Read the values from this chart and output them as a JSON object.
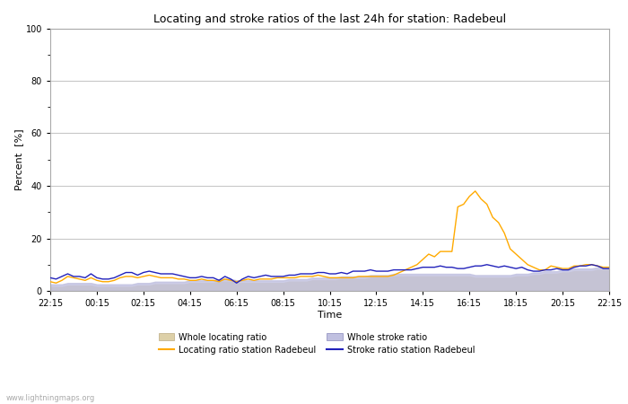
{
  "title": "Locating and stroke ratios of the last 24h for station: Radebeul",
  "xlabel": "Time",
  "ylabel": "Percent  [%]",
  "watermark": "www.lightningmaps.org",
  "x_ticks": [
    "22:15",
    "00:15",
    "02:15",
    "04:15",
    "06:15",
    "08:15",
    "10:15",
    "12:15",
    "14:15",
    "16:15",
    "18:15",
    "20:15",
    "22:15"
  ],
  "ylim": [
    0,
    100
  ],
  "yticks": [
    0,
    20,
    40,
    60,
    80,
    100
  ],
  "y_minor_ticks": [
    10,
    30,
    50,
    70,
    90
  ],
  "bg_color": "#ffffff",
  "plot_bg_color": "#ffffff",
  "grid_color": "#c8c8c8",
  "locating_line_color": "#ffaa00",
  "stroke_line_color": "#2222bb",
  "locating_fill_color": "#ddd0a8",
  "stroke_fill_color": "#c0c0e0",
  "legend_labels": [
    "Whole locating ratio",
    "Locating ratio station Radebeul",
    "Whole stroke ratio",
    "Stroke ratio station Radebeul"
  ],
  "n_points": 97,
  "whole_locating_ratio": [
    1.5,
    1.5,
    1.5,
    2.0,
    2.0,
    2.0,
    2.0,
    2.0,
    1.5,
    1.5,
    1.5,
    1.5,
    1.5,
    1.5,
    1.5,
    2.0,
    2.0,
    2.0,
    2.5,
    2.5,
    2.5,
    2.5,
    2.5,
    2.5,
    3.0,
    3.0,
    3.0,
    3.0,
    3.0,
    3.5,
    3.5,
    3.5,
    3.0,
    3.0,
    3.0,
    3.0,
    3.0,
    3.0,
    3.0,
    3.0,
    3.0,
    3.5,
    3.5,
    3.5,
    3.5,
    4.0,
    4.0,
    4.0,
    4.0,
    4.0,
    4.5,
    4.5,
    4.5,
    4.5,
    4.5,
    5.0,
    5.0,
    5.0,
    5.0,
    5.5,
    5.5,
    5.5,
    5.5,
    5.5,
    5.5,
    5.5,
    5.5,
    5.5,
    5.5,
    5.5,
    5.5,
    5.5,
    5.5,
    5.0,
    5.0,
    5.0,
    5.0,
    5.0,
    5.0,
    5.0,
    5.5,
    5.5,
    5.5,
    6.0,
    6.0,
    6.5,
    6.5,
    6.5,
    7.0,
    7.0,
    7.5,
    7.5,
    7.5,
    7.5,
    8.0,
    8.0,
    8.0
  ],
  "locating_station": [
    3.5,
    3.0,
    4.0,
    5.5,
    5.0,
    4.5,
    4.0,
    5.0,
    4.0,
    3.5,
    3.5,
    4.0,
    5.0,
    5.5,
    5.5,
    5.0,
    5.5,
    6.0,
    5.5,
    5.0,
    5.0,
    5.0,
    4.5,
    4.5,
    4.0,
    4.0,
    4.5,
    4.0,
    4.0,
    3.5,
    4.5,
    4.0,
    3.5,
    4.0,
    4.5,
    4.0,
    4.5,
    4.5,
    4.5,
    5.0,
    5.0,
    5.0,
    5.0,
    5.5,
    5.5,
    5.5,
    6.0,
    5.5,
    5.0,
    5.0,
    5.0,
    5.0,
    5.0,
    5.5,
    5.5,
    5.5,
    5.5,
    5.5,
    5.5,
    6.0,
    7.0,
    8.0,
    9.0,
    10.0,
    12.0,
    14.0,
    13.0,
    15.0,
    15.0,
    15.0,
    32.0,
    33.0,
    36.0,
    38.0,
    35.0,
    33.0,
    28.0,
    26.0,
    22.0,
    16.0,
    14.0,
    12.0,
    10.0,
    9.0,
    8.0,
    8.0,
    9.5,
    9.0,
    8.5,
    8.5,
    9.5,
    9.5,
    10.0,
    10.0,
    9.5,
    9.0,
    9.0
  ],
  "whole_stroke_ratio": [
    2.5,
    2.5,
    2.5,
    3.0,
    3.0,
    3.0,
    3.0,
    3.0,
    2.5,
    2.5,
    2.5,
    2.5,
    2.5,
    2.5,
    2.5,
    3.0,
    3.0,
    3.0,
    3.5,
    3.5,
    3.5,
    3.5,
    3.5,
    3.5,
    4.0,
    4.0,
    4.0,
    4.0,
    4.0,
    4.5,
    4.5,
    4.5,
    4.0,
    4.0,
    4.0,
    4.0,
    4.0,
    4.0,
    4.0,
    4.0,
    4.0,
    4.5,
    4.5,
    4.5,
    4.5,
    5.0,
    5.0,
    5.0,
    5.0,
    5.0,
    5.5,
    5.5,
    5.5,
    5.5,
    5.5,
    6.0,
    6.0,
    6.0,
    6.0,
    6.5,
    6.5,
    6.5,
    6.5,
    6.5,
    6.5,
    6.5,
    6.5,
    6.5,
    6.5,
    6.5,
    6.5,
    6.5,
    6.5,
    6.0,
    6.0,
    6.0,
    6.0,
    6.0,
    6.0,
    6.0,
    6.5,
    6.5,
    6.5,
    7.0,
    7.0,
    7.5,
    7.5,
    7.5,
    8.0,
    8.0,
    8.5,
    8.5,
    8.5,
    8.5,
    9.0,
    9.0,
    9.0
  ],
  "stroke_station": [
    5.0,
    4.5,
    5.5,
    6.5,
    5.5,
    5.5,
    5.0,
    6.5,
    5.0,
    4.5,
    4.5,
    5.0,
    6.0,
    7.0,
    7.0,
    6.0,
    7.0,
    7.5,
    7.0,
    6.5,
    6.5,
    6.5,
    6.0,
    5.5,
    5.0,
    5.0,
    5.5,
    5.0,
    5.0,
    4.0,
    5.5,
    4.5,
    3.0,
    4.5,
    5.5,
    5.0,
    5.5,
    6.0,
    5.5,
    5.5,
    5.5,
    6.0,
    6.0,
    6.5,
    6.5,
    6.5,
    7.0,
    7.0,
    6.5,
    6.5,
    7.0,
    6.5,
    7.5,
    7.5,
    7.5,
    8.0,
    7.5,
    7.5,
    7.5,
    8.0,
    8.0,
    8.0,
    8.0,
    8.5,
    9.0,
    9.0,
    9.0,
    9.5,
    9.0,
    9.0,
    8.5,
    8.5,
    9.0,
    9.5,
    9.5,
    10.0,
    9.5,
    9.0,
    9.5,
    9.0,
    8.5,
    9.0,
    8.0,
    7.5,
    7.5,
    8.0,
    8.0,
    8.5,
    8.0,
    8.0,
    9.0,
    9.5,
    9.5,
    10.0,
    9.5,
    8.5,
    8.5
  ]
}
